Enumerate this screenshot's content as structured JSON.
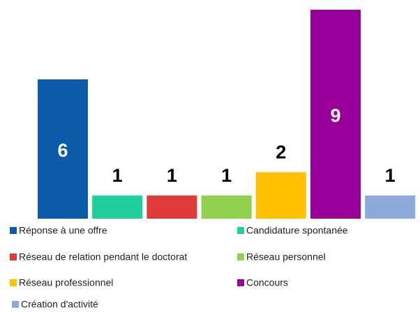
{
  "chart_data": {
    "type": "bar",
    "categories": [
      "Réponse à une offre",
      "Candidature spontanée",
      "Réseau de relation pendant le doctorat",
      "Réseau personnel",
      "Réseau professionnel",
      "Concours",
      "Création d'activité"
    ],
    "values": [
      6,
      1,
      1,
      1,
      2,
      9,
      1
    ],
    "colors": [
      "#0b5ba8",
      "#1fcf9b",
      "#e03b3b",
      "#92d050",
      "#ffc000",
      "#990099",
      "#8eaadb"
    ],
    "legend": "bottom"
  }
}
